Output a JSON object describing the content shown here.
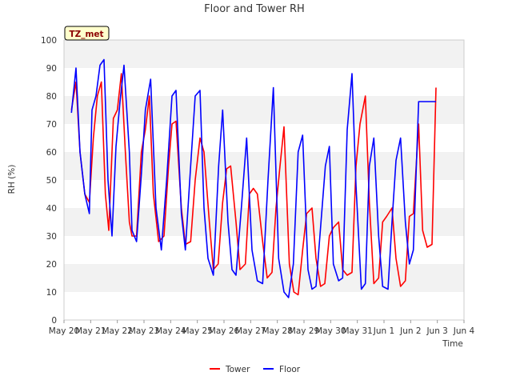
{
  "chart_data": {
    "type": "line",
    "title": "Floor and Tower RH",
    "xlabel": "Time",
    "ylabel": "RH (%)",
    "badge": "TZ_met",
    "ylim": [
      0,
      100
    ],
    "yticks": [
      0,
      10,
      20,
      30,
      40,
      50,
      60,
      70,
      80,
      90,
      100
    ],
    "xlim": [
      0,
      15
    ],
    "xticks": [
      0,
      1,
      2,
      3,
      4,
      5,
      6,
      7,
      8,
      9,
      10,
      11,
      12,
      13,
      14,
      15
    ],
    "xtick_labels": [
      "May 20",
      "May 21",
      "May 22",
      "May 23",
      "May 24",
      "May 25",
      "May 26",
      "May 27",
      "May 28",
      "May 29",
      "May 30",
      "May 31",
      "Jun 1",
      "Jun 2",
      "Jun 3",
      "Jun 4"
    ],
    "grid": "horizontal bands",
    "legend_position": "bottom-center",
    "series": [
      {
        "name": "Tower",
        "color": "#ff0000",
        "x": [
          0.28,
          0.45,
          0.6,
          0.78,
          0.95,
          1.1,
          1.25,
          1.4,
          1.55,
          1.68,
          1.85,
          2.0,
          2.15,
          2.3,
          2.45,
          2.55,
          2.72,
          2.9,
          3.05,
          3.2,
          3.35,
          3.55,
          3.75,
          3.92,
          4.05,
          4.2,
          4.4,
          4.55,
          4.75,
          4.92,
          5.1,
          5.25,
          5.45,
          5.6,
          5.78,
          5.95,
          6.1,
          6.25,
          6.45,
          6.6,
          6.8,
          6.95,
          7.1,
          7.25,
          7.45,
          7.62,
          7.8,
          7.95,
          8.1,
          8.25,
          8.45,
          8.62,
          8.78,
          8.95,
          9.1,
          9.3,
          9.45,
          9.62,
          9.78,
          9.95,
          10.1,
          10.3,
          10.45,
          10.62,
          10.8,
          10.95,
          11.1,
          11.3,
          11.45,
          11.62,
          11.8,
          11.95,
          12.1,
          12.3,
          12.45,
          12.62,
          12.8,
          12.95,
          13.1,
          13.3,
          13.45,
          13.62,
          13.8,
          13.95
        ],
        "y": [
          75,
          85,
          60,
          45,
          42,
          65,
          80,
          85,
          45,
          32,
          72,
          75,
          88,
          60,
          35,
          30,
          30,
          60,
          68,
          80,
          45,
          28,
          30,
          55,
          70,
          71,
          40,
          27,
          28,
          50,
          65,
          60,
          35,
          18,
          20,
          42,
          54,
          55,
          35,
          18,
          20,
          45,
          47,
          45,
          28,
          15,
          17,
          40,
          55,
          69,
          20,
          10,
          9,
          25,
          38,
          40,
          22,
          12,
          13,
          30,
          33,
          35,
          18,
          16,
          17,
          55,
          70,
          80,
          42,
          13,
          15,
          35,
          37,
          40,
          22,
          12,
          14,
          37,
          38,
          70,
          32,
          26,
          27,
          83
        ]
      },
      {
        "name": "Floor",
        "color": "#0000ff",
        "x": [
          0.28,
          0.45,
          0.6,
          0.78,
          0.95,
          1.05,
          1.2,
          1.35,
          1.5,
          1.65,
          1.8,
          1.95,
          2.1,
          2.25,
          2.45,
          2.55,
          2.72,
          2.9,
          3.05,
          3.25,
          3.45,
          3.65,
          3.85,
          4.05,
          4.2,
          4.4,
          4.55,
          4.75,
          4.92,
          5.1,
          5.25,
          5.4,
          5.6,
          5.8,
          5.95,
          6.15,
          6.3,
          6.45,
          6.65,
          6.85,
          7.05,
          7.25,
          7.45,
          7.65,
          7.85,
          8.05,
          8.25,
          8.42,
          8.6,
          8.78,
          8.95,
          9.15,
          9.3,
          9.45,
          9.62,
          9.8,
          9.95,
          10.1,
          10.3,
          10.45,
          10.62,
          10.8,
          10.95,
          11.15,
          11.3,
          11.45,
          11.62,
          11.8,
          11.95,
          12.15,
          12.3,
          12.45,
          12.62,
          12.8,
          12.95,
          13.1,
          13.3,
          13.5,
          13.62,
          13.8,
          13.95
        ],
        "y": [
          74,
          90,
          60,
          45,
          38,
          75,
          80,
          91,
          93,
          50,
          30,
          62,
          78,
          91,
          60,
          32,
          28,
          52,
          75,
          86,
          40,
          25,
          50,
          80,
          82,
          38,
          25,
          55,
          80,
          82,
          40,
          22,
          16,
          55,
          75,
          35,
          18,
          16,
          40,
          65,
          25,
          14,
          13,
          50,
          83,
          22,
          10,
          8,
          20,
          60,
          66,
          18,
          11,
          12,
          33,
          55,
          62,
          20,
          14,
          15,
          68,
          88,
          48,
          11,
          13,
          55,
          65,
          30,
          12,
          11,
          35,
          57,
          65,
          35,
          20,
          25,
          78,
          78,
          78,
          78,
          78
        ]
      }
    ]
  }
}
